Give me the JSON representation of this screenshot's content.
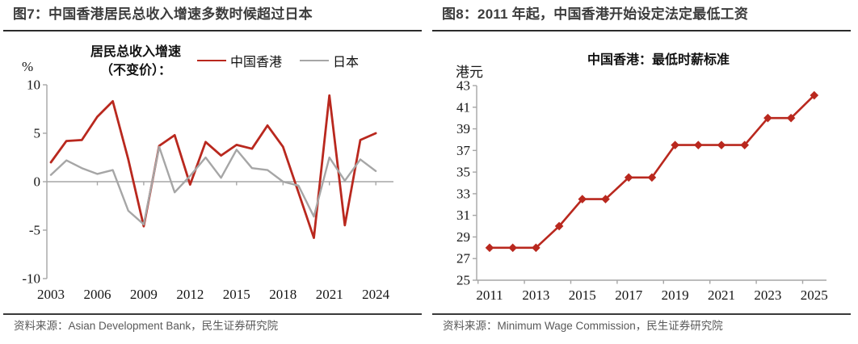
{
  "colors": {
    "hk_red": "#B9281E",
    "japan_gray": "#A6A6A6",
    "axis_gray": "#A6A6A6",
    "title_dark": "#3C3C3C",
    "source_gray": "#595959"
  },
  "left_panel": {
    "figure_title": "图7：中国香港居民总收入增速多数时候超过日本",
    "source": "资料来源：Asian Development Bank，民生证券研究院"
  },
  "right_panel": {
    "figure_title": "图8：2011 年起，中国香港开始设定法定最低工资",
    "source": "资料来源：Minimum Wage Commission，民生证券研究院"
  },
  "chart_data": [
    {
      "type": "line",
      "title": "居民总收入增速\n（不变价）：",
      "unit_label": "%",
      "x": [
        2003,
        2004,
        2005,
        2006,
        2007,
        2008,
        2009,
        2010,
        2011,
        2012,
        2013,
        2014,
        2015,
        2016,
        2017,
        2018,
        2019,
        2020,
        2021,
        2022,
        2023,
        2024
      ],
      "series": [
        {
          "name": "中国香港",
          "color_key": "hk_red",
          "width": 2.8,
          "values": [
            2.0,
            4.2,
            4.3,
            6.7,
            8.3,
            2.3,
            -4.6,
            3.7,
            4.8,
            -0.3,
            4.1,
            2.7,
            3.8,
            3.4,
            5.8,
            3.6,
            -1.1,
            -5.8,
            8.9,
            -4.5,
            4.3,
            5.0
          ]
        },
        {
          "name": "日本",
          "color_key": "japan_gray",
          "width": 2.4,
          "values": [
            0.7,
            2.2,
            1.4,
            0.8,
            1.2,
            -3.0,
            -4.4,
            3.6,
            -1.1,
            0.6,
            2.5,
            0.4,
            3.3,
            1.4,
            1.2,
            0.0,
            -0.4,
            -3.6,
            2.5,
            0.1,
            2.3,
            1.1
          ]
        }
      ],
      "ylim": [
        -10,
        10
      ],
      "yticks": [
        10,
        5,
        0,
        -5,
        -10
      ],
      "xtick_labels": [
        "2003",
        "2006",
        "2009",
        "2012",
        "2015",
        "2018",
        "2021",
        "2024"
      ],
      "legend_position": "top"
    },
    {
      "type": "line",
      "title": "中国香港：最低时薪标准",
      "unit_label": "港元",
      "x": [
        2011,
        2012,
        2013,
        2014,
        2015,
        2016,
        2017,
        2018,
        2019,
        2020,
        2021,
        2022,
        2023,
        2024,
        2025
      ],
      "series": [
        {
          "name": "最低时薪标准",
          "color_key": "hk_red",
          "width": 2.6,
          "marker": "diamond",
          "values": [
            28,
            28,
            28,
            30,
            32.5,
            32.5,
            34.5,
            34.5,
            37.5,
            37.5,
            37.5,
            37.5,
            40,
            40,
            42.1
          ]
        }
      ],
      "ylim": [
        25,
        43
      ],
      "yticks": [
        43,
        41,
        39,
        37,
        35,
        33,
        31,
        29,
        27,
        25
      ],
      "xtick_labels": [
        "2011",
        "2013",
        "2015",
        "2017",
        "2019",
        "2021",
        "2023",
        "2025"
      ],
      "legend_position": "none"
    }
  ]
}
